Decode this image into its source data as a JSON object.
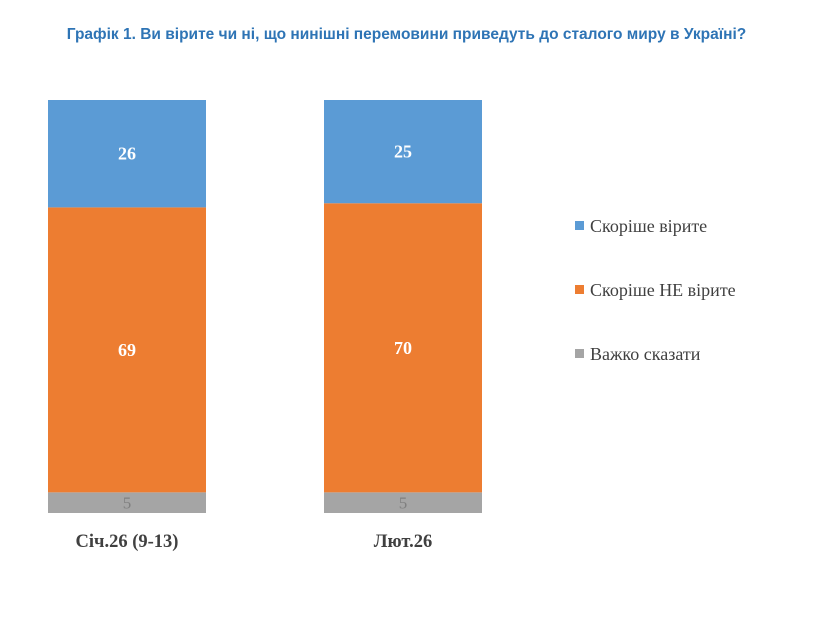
{
  "chart_data": {
    "type": "bar",
    "stacked": "percent",
    "title": "Графік 1. Ви вірите чи ні, що нинішні перемовини приведуть до сталого миру в Україні?",
    "categories": [
      "Січ.26 (9-13)",
      "Лют.26"
    ],
    "series": [
      {
        "name": "Важко сказати",
        "values": [
          5,
          5
        ],
        "color": "#a5a5a5"
      },
      {
        "name": "Скоріше НЕ вірите",
        "values": [
          69,
          70
        ],
        "color": "#ed7d31"
      },
      {
        "name": "Скоріше вірите",
        "values": [
          26,
          25
        ],
        "color": "#5b9bd5"
      }
    ],
    "legend": [
      "Скоріше вірите",
      "Скоріше НЕ вірите",
      "Важко сказати"
    ],
    "legend_position": "right",
    "ylim": [
      0,
      100
    ]
  }
}
